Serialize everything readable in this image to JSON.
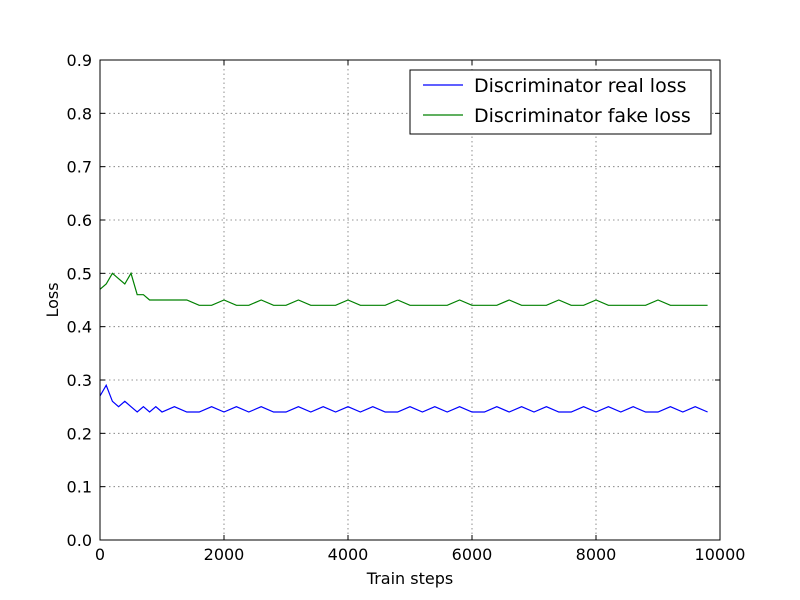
{
  "chart_data": {
    "type": "line",
    "title": "",
    "xlabel": "Train steps",
    "ylabel": "Loss",
    "xlim": [
      0,
      10000
    ],
    "ylim": [
      0.0,
      0.9
    ],
    "xticks": [
      0,
      2000,
      4000,
      6000,
      8000,
      10000
    ],
    "xtick_labels": [
      "0",
      "2000",
      "4000",
      "6000",
      "8000",
      "10000"
    ],
    "yticks": [
      0.0,
      0.1,
      0.2,
      0.3,
      0.4,
      0.5,
      0.6,
      0.7,
      0.8,
      0.9
    ],
    "ytick_labels": [
      "0.0",
      "0.1",
      "0.2",
      "0.3",
      "0.4",
      "0.5",
      "0.6",
      "0.7",
      "0.8",
      "0.9"
    ],
    "grid": true,
    "legend_position": "top-right",
    "series": [
      {
        "name": "Discriminator real loss",
        "color": "#0000ff",
        "x": [
          0,
          100,
          200,
          300,
          400,
          500,
          600,
          700,
          800,
          900,
          1000,
          1200,
          1400,
          1600,
          1800,
          2000,
          2200,
          2400,
          2600,
          2800,
          3000,
          3200,
          3400,
          3600,
          3800,
          4000,
          4200,
          4400,
          4600,
          4800,
          5000,
          5200,
          5400,
          5600,
          5800,
          6000,
          6200,
          6400,
          6600,
          6800,
          7000,
          7200,
          7400,
          7600,
          7800,
          8000,
          8200,
          8400,
          8600,
          8800,
          9000,
          9200,
          9400,
          9600,
          9800
        ],
        "y": [
          0.27,
          0.29,
          0.26,
          0.25,
          0.26,
          0.25,
          0.24,
          0.25,
          0.24,
          0.25,
          0.24,
          0.25,
          0.24,
          0.24,
          0.25,
          0.24,
          0.25,
          0.24,
          0.25,
          0.24,
          0.24,
          0.25,
          0.24,
          0.25,
          0.24,
          0.25,
          0.24,
          0.25,
          0.24,
          0.24,
          0.25,
          0.24,
          0.25,
          0.24,
          0.25,
          0.24,
          0.24,
          0.25,
          0.24,
          0.25,
          0.24,
          0.25,
          0.24,
          0.24,
          0.25,
          0.24,
          0.25,
          0.24,
          0.25,
          0.24,
          0.24,
          0.25,
          0.24,
          0.25,
          0.24
        ]
      },
      {
        "name": "Discriminator fake loss",
        "color": "#008000",
        "x": [
          0,
          100,
          200,
          300,
          400,
          500,
          600,
          700,
          800,
          900,
          1000,
          1200,
          1400,
          1600,
          1800,
          2000,
          2200,
          2400,
          2600,
          2800,
          3000,
          3200,
          3400,
          3600,
          3800,
          4000,
          4200,
          4400,
          4600,
          4800,
          5000,
          5200,
          5400,
          5600,
          5800,
          6000,
          6200,
          6400,
          6600,
          6800,
          7000,
          7200,
          7400,
          7600,
          7800,
          8000,
          8200,
          8400,
          8600,
          8800,
          9000,
          9200,
          9400,
          9600,
          9800
        ],
        "y": [
          0.47,
          0.48,
          0.5,
          0.49,
          0.48,
          0.5,
          0.46,
          0.46,
          0.45,
          0.45,
          0.45,
          0.45,
          0.45,
          0.44,
          0.44,
          0.45,
          0.44,
          0.44,
          0.45,
          0.44,
          0.44,
          0.45,
          0.44,
          0.44,
          0.44,
          0.45,
          0.44,
          0.44,
          0.44,
          0.45,
          0.44,
          0.44,
          0.44,
          0.44,
          0.45,
          0.44,
          0.44,
          0.44,
          0.45,
          0.44,
          0.44,
          0.44,
          0.45,
          0.44,
          0.44,
          0.45,
          0.44,
          0.44,
          0.44,
          0.44,
          0.45,
          0.44,
          0.44,
          0.44,
          0.44
        ]
      }
    ]
  }
}
